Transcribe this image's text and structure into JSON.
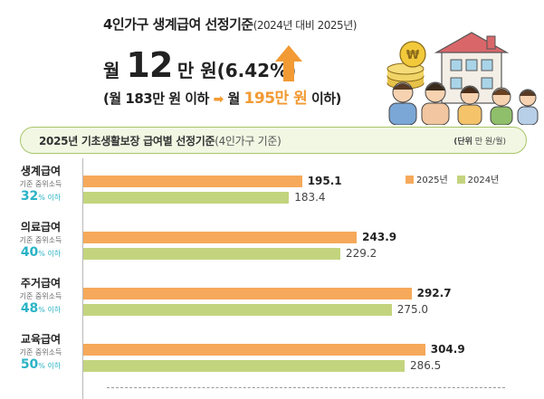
{
  "header": {
    "title": "4인가구 생계급여 선정기준",
    "title_sub": "(2024년 대비 2025년)",
    "increase_prefix": "월 ",
    "increase_amount": "12",
    "increase_suffix": "만 원(6.42%)",
    "compare_open": "(월 183만 원 이하 ",
    "compare_arrow": "➡",
    "compare_mid": " 월 ",
    "compare_new": "195만 원",
    "compare_close": " 이하)"
  },
  "colors": {
    "bar_2025": "#f6a95a",
    "bar_2024": "#c3d47e",
    "accent_orange": "#f29a33",
    "percent_teal": "#2ab3c6",
    "banner_border": "#a9c56a"
  },
  "banner": {
    "title": "2025년 기초생활보장 급여별 선정기준",
    "title_sub": "(4인가구 기준)",
    "unit_prefix": "(단위",
    "unit_rest": " 만 원/월)"
  },
  "legend": {
    "y2025": "2025년",
    "y2024": "2024년"
  },
  "chart_data": {
    "type": "bar",
    "orientation": "horizontal",
    "title": "2025년 기초생활보장 급여별 선정기준 (4인가구 기준)",
    "unit": "만 원/월",
    "categories": [
      "생계급여",
      "의료급여",
      "주거급여",
      "교육급여"
    ],
    "category_sub": "기준 중위소득",
    "category_percents": [
      "32",
      "40",
      "48",
      "50"
    ],
    "percent_suffix": "% 이하",
    "series": [
      {
        "name": "2025년",
        "values": [
          195.1,
          243.9,
          292.7,
          304.9
        ],
        "labels": [
          "195.1",
          "243.9",
          "292.7",
          "304.9"
        ]
      },
      {
        "name": "2024년",
        "values": [
          183.4,
          229.2,
          275.0,
          286.5
        ],
        "labels": [
          "183.4",
          "229.2",
          "275.0",
          "286.5"
        ]
      }
    ],
    "xlim": [
      0,
      360
    ],
    "grid": false,
    "legend_position": "top-right"
  }
}
